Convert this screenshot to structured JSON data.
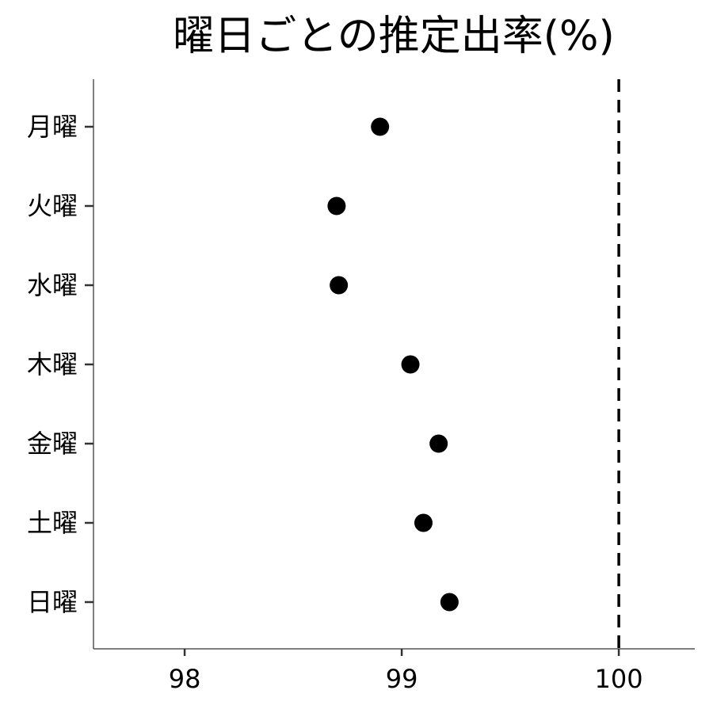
{
  "chart_data": {
    "type": "scatter",
    "title": "曜日ごとの推定出率(%)",
    "xlabel": "",
    "ylabel": "",
    "categories": [
      "月曜",
      "火曜",
      "水曜",
      "木曜",
      "金曜",
      "土曜",
      "日曜"
    ],
    "values": [
      98.9,
      98.7,
      98.71,
      99.04,
      99.17,
      99.1,
      99.22
    ],
    "xlim": [
      97.58,
      100.35
    ],
    "xticks": [
      98,
      99,
      100
    ],
    "xtick_labels": [
      "98",
      "99",
      "100"
    ],
    "reference_line": {
      "x": 100,
      "style": "dashed",
      "color": "#000000"
    },
    "point_color": "#000000",
    "grid": false,
    "legend": "none"
  }
}
